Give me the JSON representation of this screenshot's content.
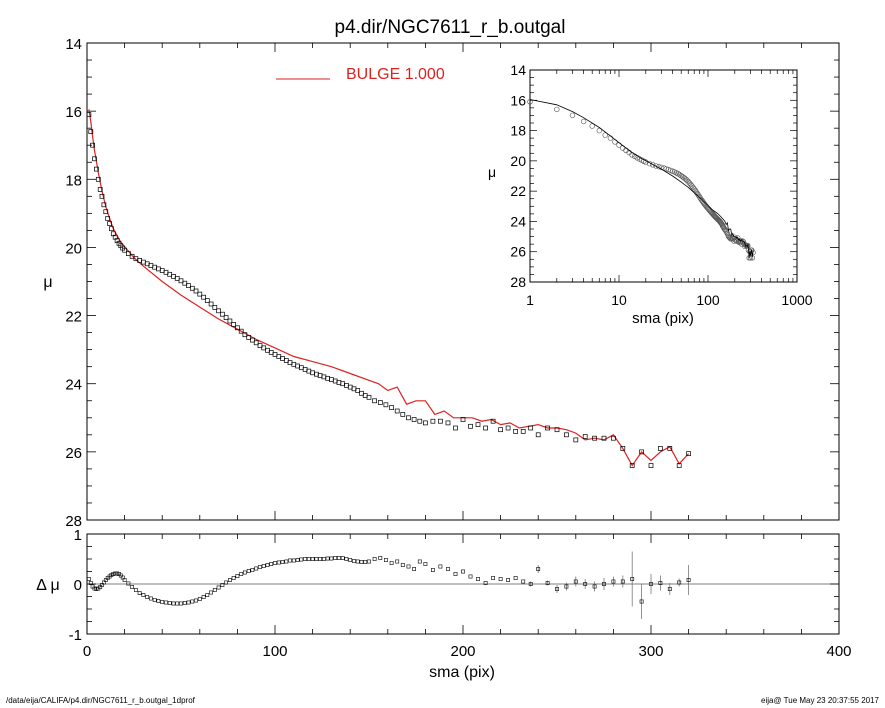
{
  "title": "p4.dir/NGC7611_r_b.outgal",
  "footer": {
    "left": "/data/eija/CALIFA/p4.dir/NGC7611_r_b.outgal_1dprof",
    "right": "eija@  Tue May 23 20:37:55 2017"
  },
  "colors": {
    "model": "#dd2222",
    "data": "#000000",
    "errorbar": "#777777"
  },
  "chart_data": [
    {
      "id": "main",
      "type": "scatter",
      "xlabel": "",
      "ylabel": "μ",
      "xlim": [
        0,
        400
      ],
      "ylim": [
        28,
        14
      ],
      "yticks": [
        "14",
        "16",
        "18",
        "20",
        "22",
        "24",
        "26",
        "28"
      ],
      "legend": {
        "label": "BULGE  1.000",
        "placement": "top"
      },
      "series": [
        {
          "kind": "points",
          "x": [
            1,
            2,
            3,
            4,
            5,
            6,
            7,
            8,
            9,
            10,
            11,
            12,
            13,
            14,
            15,
            16,
            17,
            18,
            19,
            20,
            22,
            24,
            26,
            28,
            30,
            32,
            34,
            36,
            38,
            40,
            42,
            44,
            46,
            48,
            50,
            52,
            54,
            56,
            58,
            60,
            62,
            64,
            66,
            68,
            70,
            72,
            74,
            76,
            78,
            80,
            82,
            84,
            86,
            88,
            90,
            92,
            94,
            96,
            98,
            100,
            102,
            104,
            106,
            108,
            110,
            112,
            114,
            116,
            118,
            120,
            122,
            124,
            126,
            128,
            130,
            132,
            134,
            136,
            138,
            140,
            142,
            144,
            146,
            148,
            150,
            153,
            156,
            159,
            162,
            165,
            168,
            171,
            174,
            177,
            180,
            184,
            188,
            192,
            196,
            200,
            204,
            208,
            212,
            216,
            220,
            224,
            228,
            232,
            236,
            240,
            245,
            250,
            255,
            260,
            265,
            270,
            275,
            280,
            285,
            290,
            295,
            300,
            305,
            310,
            315,
            320
          ],
          "y": [
            16.1,
            16.6,
            17.0,
            17.4,
            17.7,
            18.0,
            18.3,
            18.5,
            18.75,
            18.95,
            19.15,
            19.3,
            19.45,
            19.6,
            19.7,
            19.8,
            19.88,
            19.95,
            20.02,
            20.08,
            20.18,
            20.26,
            20.33,
            20.38,
            20.43,
            20.48,
            20.53,
            20.58,
            20.63,
            20.68,
            20.73,
            20.79,
            20.85,
            20.91,
            20.98,
            21.05,
            21.12,
            21.2,
            21.28,
            21.37,
            21.46,
            21.56,
            21.66,
            21.76,
            21.86,
            21.96,
            22.06,
            22.16,
            22.26,
            22.36,
            22.46,
            22.56,
            22.64,
            22.72,
            22.8,
            22.88,
            22.95,
            23.02,
            23.08,
            23.14,
            23.2,
            23.26,
            23.32,
            23.38,
            23.43,
            23.48,
            23.53,
            23.58,
            23.63,
            23.68,
            23.72,
            23.76,
            23.8,
            23.84,
            23.88,
            23.92,
            23.96,
            24.0,
            24.05,
            24.1,
            24.15,
            24.2,
            24.28,
            24.35,
            24.4,
            24.5,
            24.55,
            24.62,
            24.7,
            24.8,
            24.9,
            25.0,
            25.05,
            25.1,
            25.15,
            25.1,
            25.1,
            25.15,
            25.3,
            25.05,
            25.25,
            25.2,
            25.3,
            25.1,
            25.35,
            25.3,
            25.4,
            25.4,
            25.3,
            25.5,
            25.3,
            25.35,
            25.5,
            25.65,
            25.55,
            25.6,
            25.6,
            25.6,
            25.9,
            26.4,
            26.0,
            26.4,
            25.9,
            25.9,
            26.4,
            26.05
          ]
        },
        {
          "kind": "model",
          "name": "BULGE  1.000",
          "x": [
            1,
            2,
            3,
            4,
            6,
            8,
            10,
            12,
            14,
            16,
            18,
            20,
            25,
            30,
            40,
            50,
            60,
            70,
            80,
            90,
            100,
            110,
            120,
            130,
            140,
            150,
            155,
            160,
            165,
            170,
            175,
            180,
            185,
            190,
            195,
            200,
            205,
            210,
            215,
            220,
            225,
            230,
            235,
            240,
            245,
            250,
            255,
            260,
            265,
            270,
            275,
            280,
            285,
            290,
            295,
            300,
            305,
            310,
            315,
            320
          ],
          "y": [
            15.95,
            16.3,
            16.75,
            17.15,
            17.8,
            18.35,
            18.8,
            19.15,
            19.45,
            19.65,
            19.85,
            19.98,
            20.3,
            20.55,
            21.0,
            21.4,
            21.75,
            22.1,
            22.4,
            22.7,
            22.95,
            23.2,
            23.35,
            23.5,
            23.7,
            23.9,
            24.0,
            24.2,
            24.1,
            24.6,
            24.5,
            24.5,
            24.9,
            24.8,
            25.0,
            25.0,
            25.0,
            25.1,
            25.05,
            25.2,
            25.15,
            25.3,
            25.25,
            25.2,
            25.3,
            25.3,
            25.35,
            25.45,
            25.65,
            25.6,
            25.65,
            25.5,
            25.9,
            26.4,
            26.0,
            26.25,
            26.0,
            25.85,
            26.35,
            26.05
          ]
        }
      ]
    },
    {
      "id": "inset",
      "type": "scatter",
      "xlabel": "sma (pix)",
      "ylabel": "μ",
      "xscale": "log",
      "xlim": [
        1,
        1000
      ],
      "xticks": [
        "1",
        "10",
        "100",
        "1000"
      ],
      "ylim": [
        28,
        14
      ],
      "yticks": [
        "14",
        "16",
        "18",
        "20",
        "22",
        "24",
        "26",
        "28"
      ]
    },
    {
      "id": "residual",
      "type": "scatter",
      "xlabel": "sma (pix)",
      "ylabel": "Δ μ",
      "xlim": [
        0,
        400
      ],
      "xticks": [
        "0",
        "100",
        "200",
        "300",
        "400"
      ],
      "ylim": [
        -1,
        1
      ],
      "yticks": [
        "1",
        "0",
        "-1"
      ],
      "series": [
        {
          "kind": "points",
          "x": [
            1,
            2,
            3,
            4,
            5,
            6,
            7,
            8,
            9,
            10,
            11,
            12,
            13,
            14,
            15,
            16,
            17,
            18,
            19,
            20,
            22,
            24,
            26,
            28,
            30,
            32,
            34,
            36,
            38,
            40,
            42,
            44,
            46,
            48,
            50,
            52,
            54,
            56,
            58,
            60,
            62,
            64,
            66,
            68,
            70,
            72,
            74,
            76,
            78,
            80,
            82,
            84,
            86,
            88,
            90,
            92,
            94,
            96,
            98,
            100,
            102,
            104,
            106,
            108,
            110,
            112,
            114,
            116,
            118,
            120,
            122,
            124,
            126,
            128,
            130,
            132,
            134,
            136,
            138,
            140,
            142,
            144,
            146,
            148,
            150,
            153,
            156,
            159,
            162,
            165,
            168,
            171,
            174,
            177,
            180,
            184,
            188,
            192,
            196,
            200,
            204,
            208,
            212,
            216,
            220,
            224,
            228,
            232,
            236,
            240,
            245,
            250,
            255,
            260,
            265,
            270,
            275,
            280,
            285,
            290,
            295,
            300,
            305,
            310,
            315,
            320
          ],
          "y": [
            0.1,
            0.02,
            -0.05,
            -0.09,
            -0.1,
            -0.09,
            -0.06,
            -0.02,
            0.03,
            0.08,
            0.12,
            0.15,
            0.18,
            0.2,
            0.21,
            0.21,
            0.2,
            0.17,
            0.13,
            0.08,
            0.01,
            -0.06,
            -0.12,
            -0.18,
            -0.22,
            -0.26,
            -0.29,
            -0.32,
            -0.34,
            -0.36,
            -0.37,
            -0.38,
            -0.39,
            -0.39,
            -0.39,
            -0.38,
            -0.37,
            -0.35,
            -0.33,
            -0.3,
            -0.26,
            -0.22,
            -0.17,
            -0.12,
            -0.07,
            -0.02,
            0.03,
            0.08,
            0.12,
            0.16,
            0.2,
            0.23,
            0.26,
            0.28,
            0.31,
            0.34,
            0.36,
            0.38,
            0.4,
            0.42,
            0.43,
            0.44,
            0.45,
            0.47,
            0.47,
            0.48,
            0.49,
            0.5,
            0.5,
            0.5,
            0.5,
            0.5,
            0.5,
            0.51,
            0.51,
            0.52,
            0.52,
            0.52,
            0.5,
            0.48,
            0.46,
            0.45,
            0.44,
            0.44,
            0.45,
            0.5,
            0.52,
            0.48,
            0.42,
            0.45,
            0.38,
            0.35,
            0.3,
            0.45,
            0.4,
            0.28,
            0.35,
            0.3,
            0.2,
            0.25,
            0.15,
            0.1,
            0.02,
            0.12,
            0.1,
            0.08,
            0.12,
            0.05,
            0.0,
            0.3,
            0.02,
            -0.1,
            -0.05,
            0.05,
            0.0,
            -0.05,
            0.0,
            0.05,
            0.05,
            0.1,
            -0.35,
            0.0,
            0.02,
            -0.1,
            0.03,
            0.08
          ],
          "err": [
            0,
            0,
            0,
            0,
            0,
            0,
            0,
            0,
            0,
            0,
            0,
            0,
            0,
            0,
            0,
            0,
            0,
            0,
            0,
            0,
            0,
            0,
            0,
            0,
            0,
            0,
            0,
            0,
            0,
            0,
            0,
            0,
            0,
            0,
            0,
            0,
            0,
            0,
            0,
            0,
            0,
            0,
            0,
            0,
            0,
            0,
            0,
            0,
            0,
            0,
            0,
            0,
            0,
            0,
            0,
            0,
            0,
            0,
            0,
            0,
            0,
            0,
            0,
            0,
            0,
            0,
            0,
            0,
            0,
            0,
            0,
            0,
            0,
            0,
            0,
            0,
            0,
            0,
            0,
            0,
            0,
            0,
            0,
            0,
            0,
            0,
            0,
            0,
            0,
            0,
            0,
            0,
            0,
            0,
            0,
            0,
            0,
            0,
            0,
            0,
            0,
            0,
            0,
            0,
            0,
            0,
            0,
            0,
            0.05,
            0.08,
            0.05,
            0.08,
            0.08,
            0.1,
            0.1,
            0.1,
            0.12,
            0.1,
            0.12,
            0.55,
            0.35,
            0.2,
            0.15,
            0.12,
            0.08,
            0.3
          ]
        }
      ]
    }
  ]
}
